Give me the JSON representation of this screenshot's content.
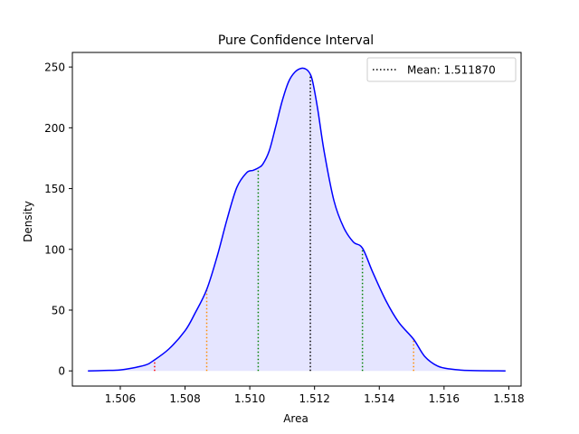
{
  "chart_data": {
    "type": "area",
    "title": "Pure Confidence Interval",
    "xlabel": "Area",
    "ylabel": "Density",
    "xlim": [
      1.50452,
      1.51838
    ],
    "ylim": [
      -12.5,
      262
    ],
    "xticks": [
      1.506,
      1.508,
      1.51,
      1.512,
      1.514,
      1.516,
      1.518
    ],
    "xtick_labels": [
      "1.506",
      "1.508",
      "1.510",
      "1.512",
      "1.514",
      "1.516",
      "1.518"
    ],
    "yticks": [
      0,
      50,
      100,
      150,
      200,
      250
    ],
    "ytick_labels": [
      "0",
      "50",
      "100",
      "150",
      "200",
      "250"
    ],
    "legend": {
      "placement": "upper-right",
      "label": "Mean: 1.511870"
    },
    "colors": {
      "curve": "#0000ff",
      "fill": "#e5e5ff",
      "mean": "#000000",
      "sigma1": "#008000",
      "sigma2": "#ff8c00",
      "sigma3": "#ff0000"
    },
    "density_curve": {
      "x": [
        1.505,
        1.5055,
        1.506,
        1.5065,
        1.5068,
        1.507,
        1.5075,
        1.508,
        1.5083,
        1.50867,
        1.509,
        1.5093,
        1.5096,
        1.5099,
        1.5101,
        1.51026,
        1.5104,
        1.5106,
        1.5108,
        1.511,
        1.5112,
        1.5114,
        1.5116,
        1.51175,
        1.51187,
        1.51195,
        1.5121,
        1.5123,
        1.5126,
        1.5129,
        1.5132,
        1.51348,
        1.5138,
        1.5142,
        1.5146,
        1.51506,
        1.5154,
        1.5158,
        1.5162,
        1.5168,
        1.5179
      ],
      "y": [
        0,
        0.3,
        0.8,
        3,
        5,
        8,
        18,
        33,
        47,
        67,
        95,
        125,
        151,
        163,
        165,
        167,
        170,
        181,
        201,
        222,
        238,
        246,
        249,
        248,
        244,
        237,
        215,
        180,
        140,
        118,
        106,
        101,
        81,
        58,
        40,
        26,
        12,
        4,
        1.5,
        0.3,
        0
      ]
    },
    "vertical_lines": [
      {
        "name": "Mean: 1.511870",
        "x": 1.51187,
        "y": 244,
        "color": "#000000"
      },
      {
        "x": 1.51026,
        "y": 167,
        "color": "#008000"
      },
      {
        "x": 1.51348,
        "y": 101,
        "color": "#008000"
      },
      {
        "x": 1.50867,
        "y": 67,
        "color": "#ff8c00"
      },
      {
        "x": 1.51506,
        "y": 26,
        "color": "#ff8c00"
      },
      {
        "x": 1.50706,
        "y": 8,
        "color": "#ff0000"
      }
    ]
  }
}
